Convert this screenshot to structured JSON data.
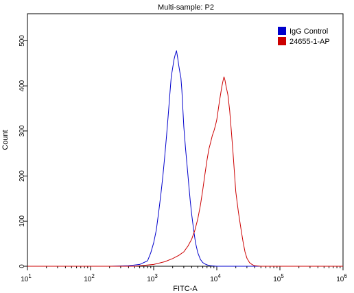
{
  "chart_data": {
    "type": "line",
    "title": "Multi-sample: P2",
    "xlabel": "FITC-A",
    "ylabel": "Count",
    "xscale": "log",
    "xlim": [
      10,
      1000000
    ],
    "ylim": [
      0,
      560
    ],
    "x_ticks": [
      {
        "base": "10",
        "exp": "1",
        "value": 10
      },
      {
        "base": "10",
        "exp": "2",
        "value": 100
      },
      {
        "base": "10",
        "exp": "3",
        "value": 1000
      },
      {
        "base": "10",
        "exp": "4",
        "value": 10000
      },
      {
        "base": "10",
        "exp": "5",
        "value": 100000
      },
      {
        "base": "10",
        "exp": "6",
        "value": 1000000
      }
    ],
    "y_ticks": [
      "0",
      "100",
      "200",
      "300",
      "400",
      "500"
    ],
    "grid": false,
    "legend_position": "top-right",
    "series": [
      {
        "name": "IgG Control",
        "color": "#0000cc",
        "x": [
          10,
          200,
          400,
          600,
          800,
          900,
          1000,
          1100,
          1200,
          1300,
          1400,
          1500,
          1600,
          1700,
          1800,
          1900,
          2000,
          2100,
          2200,
          2300,
          2400,
          2500,
          2600,
          2700,
          2800,
          2900,
          3000,
          3200,
          3400,
          3600,
          3800,
          4000,
          4300,
          4600,
          5000,
          5500,
          6000,
          6500,
          7000,
          8000,
          10000,
          20000,
          1000000
        ],
        "y": [
          0,
          0,
          1,
          4,
          12,
          30,
          52,
          80,
          120,
          160,
          200,
          245,
          290,
          335,
          380,
          420,
          440,
          458,
          470,
          478,
          462,
          445,
          430,
          418,
          390,
          350,
          310,
          260,
          220,
          180,
          145,
          115,
          80,
          52,
          30,
          15,
          8,
          5,
          3,
          1,
          0,
          0,
          0
        ]
      },
      {
        "name": "24655-1-AP",
        "color": "#cc0000",
        "x": [
          10,
          500,
          1000,
          1500,
          2000,
          2500,
          3000,
          3500,
          4000,
          4500,
          5000,
          5500,
          6000,
          6500,
          7000,
          7500,
          8000,
          8500,
          9000,
          9500,
          10000,
          10500,
          11000,
          11500,
          12000,
          12500,
          13000,
          13500,
          14000,
          15000,
          16000,
          17000,
          18000,
          19000,
          20000,
          22000,
          24000,
          26000,
          28000,
          30000,
          33000,
          36000,
          40000,
          50000,
          1000000
        ],
        "y": [
          0,
          0,
          4,
          10,
          17,
          24,
          32,
          45,
          60,
          80,
          105,
          135,
          170,
          205,
          235,
          260,
          275,
          290,
          300,
          312,
          325,
          345,
          365,
          382,
          398,
          410,
          420,
          412,
          400,
          380,
          345,
          300,
          255,
          210,
          165,
          120,
          85,
          55,
          32,
          18,
          8,
          4,
          1,
          0,
          0
        ]
      }
    ]
  }
}
